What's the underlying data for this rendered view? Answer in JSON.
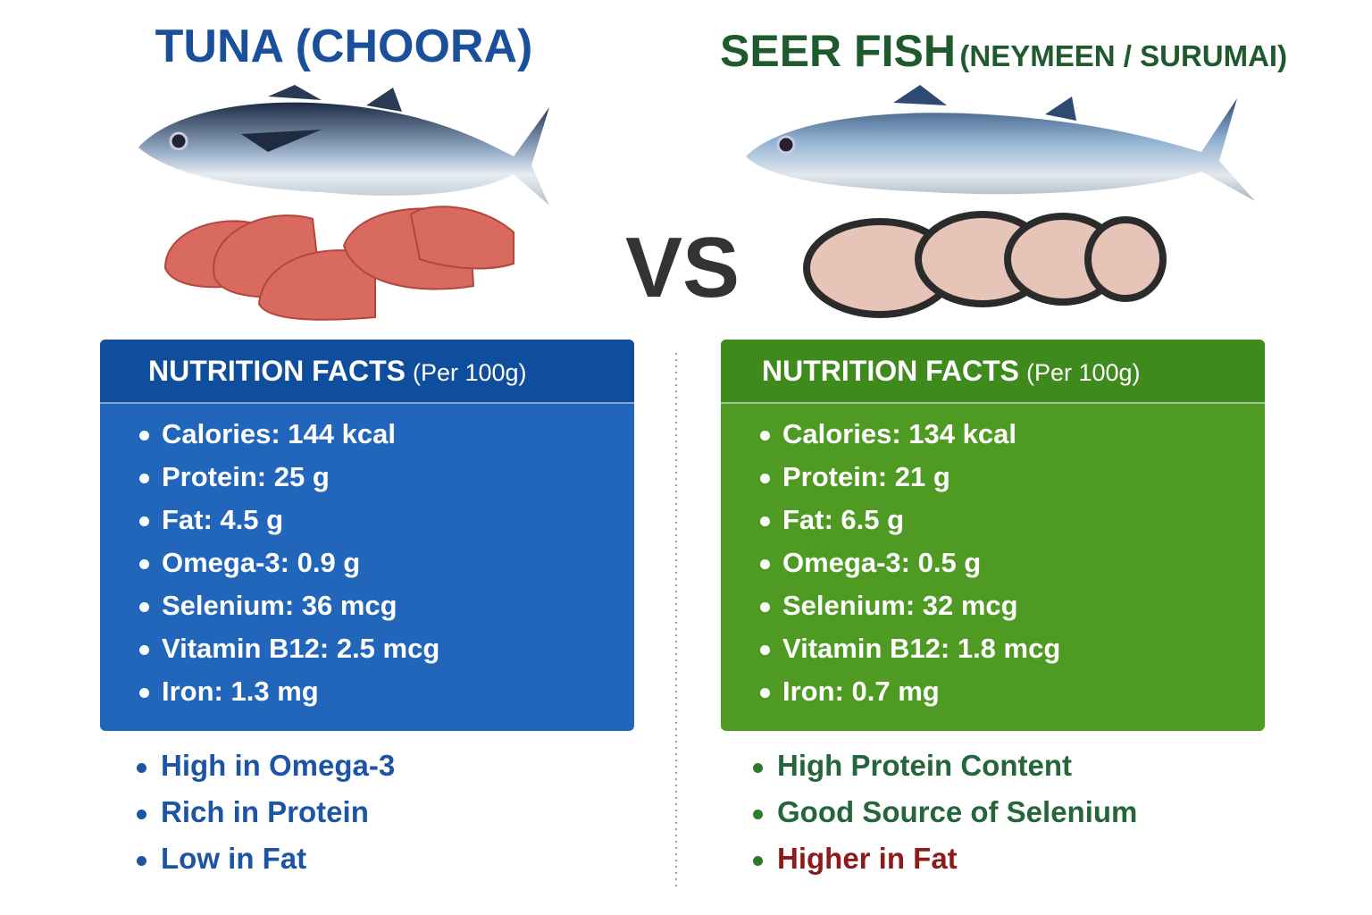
{
  "vs": "VS",
  "left": {
    "title": "TUNA (CHOORA)",
    "facts_header": "NUTRITION FACTS",
    "facts_unit": "(Per 100g)",
    "facts": [
      "Calories: 144 kcal",
      "Protein: 25 g",
      "Fat: 4.5 g",
      "Omega-3: 0.9 g",
      "Selenium: 36 mcg",
      "Vitamin B12: 2.5 mcg",
      "Iron: 1.3 mg"
    ],
    "highlights": [
      {
        "text": "High in Omega-3",
        "color": "#1c55a4"
      },
      {
        "text": "Rich in Protein",
        "color": "#1c55a4"
      },
      {
        "text": "Low in Fat",
        "color": "#1c55a4"
      }
    ]
  },
  "right": {
    "title": "SEER FISH",
    "subtitle": "(NEYMEEN / SURUMAI)",
    "facts_header": "NUTRITION FACTS",
    "facts_unit": "(Per 100g)",
    "facts": [
      "Calories: 134 kcal",
      "Protein: 21 g",
      "Fat: 6.5 g",
      "Omega-3: 0.5 g",
      "Selenium: 32 mcg",
      "Vitamin B12: 1.8 mcg",
      "Iron: 0.7 mg"
    ],
    "highlights": [
      {
        "text": "High Protein Content",
        "color": "#24653a"
      },
      {
        "text": "Good Source of Selenium",
        "color": "#24653a"
      },
      {
        "text": "Higher in Fat",
        "color": "#8e1b1b"
      }
    ]
  }
}
